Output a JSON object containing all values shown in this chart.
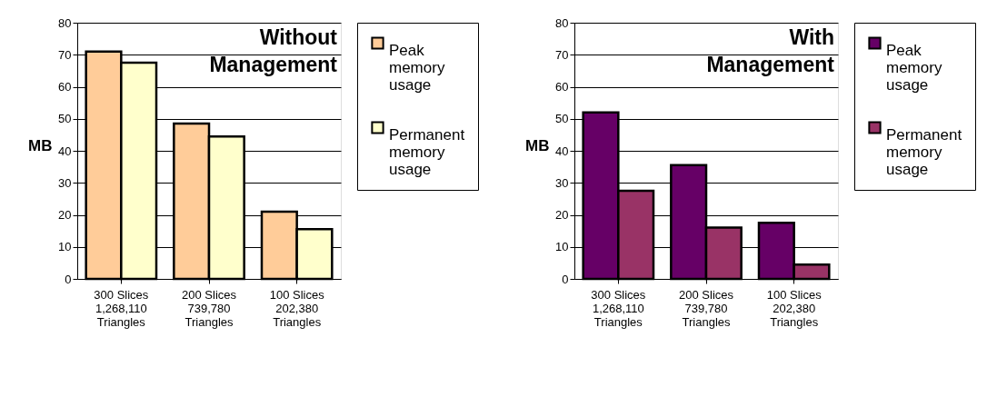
{
  "chart_data": [
    {
      "type": "bar",
      "title": "Without Management",
      "ylabel": "MB",
      "categories": [
        "300 Slices\n1,268,110\nTriangles",
        "200 Slices\n739,780\nTriangles",
        "100 Slices\n202,380\nTriangles"
      ],
      "series": [
        {
          "name": "Peak memory usage",
          "color": "#ffcc99",
          "values": [
            71,
            48.5,
            21
          ]
        },
        {
          "name": "Permanent memory usage",
          "color": "#ffffcc",
          "values": [
            67.5,
            44.5,
            15.5
          ]
        }
      ],
      "ylim": [
        0,
        80
      ],
      "yticks": [
        0,
        10,
        20,
        30,
        40,
        50,
        60,
        70,
        80
      ],
      "grid": "y",
      "legend": "right"
    },
    {
      "type": "bar",
      "title": "With Management",
      "ylabel": "MB",
      "categories": [
        "300 Slices\n1,268,110\nTriangles",
        "200 Slices\n739,780\nTriangles",
        "100 Slices\n202,380\nTriangles"
      ],
      "series": [
        {
          "name": "Peak memory usage",
          "color": "#660066",
          "values": [
            52,
            35.5,
            17.5
          ]
        },
        {
          "name": "Permanent memory usage",
          "color": "#993366",
          "values": [
            27.5,
            16,
            4.5
          ]
        }
      ],
      "ylim": [
        0,
        80
      ],
      "yticks": [
        0,
        10,
        20,
        30,
        40,
        50,
        60,
        70,
        80
      ],
      "grid": "y",
      "legend": "right"
    }
  ]
}
